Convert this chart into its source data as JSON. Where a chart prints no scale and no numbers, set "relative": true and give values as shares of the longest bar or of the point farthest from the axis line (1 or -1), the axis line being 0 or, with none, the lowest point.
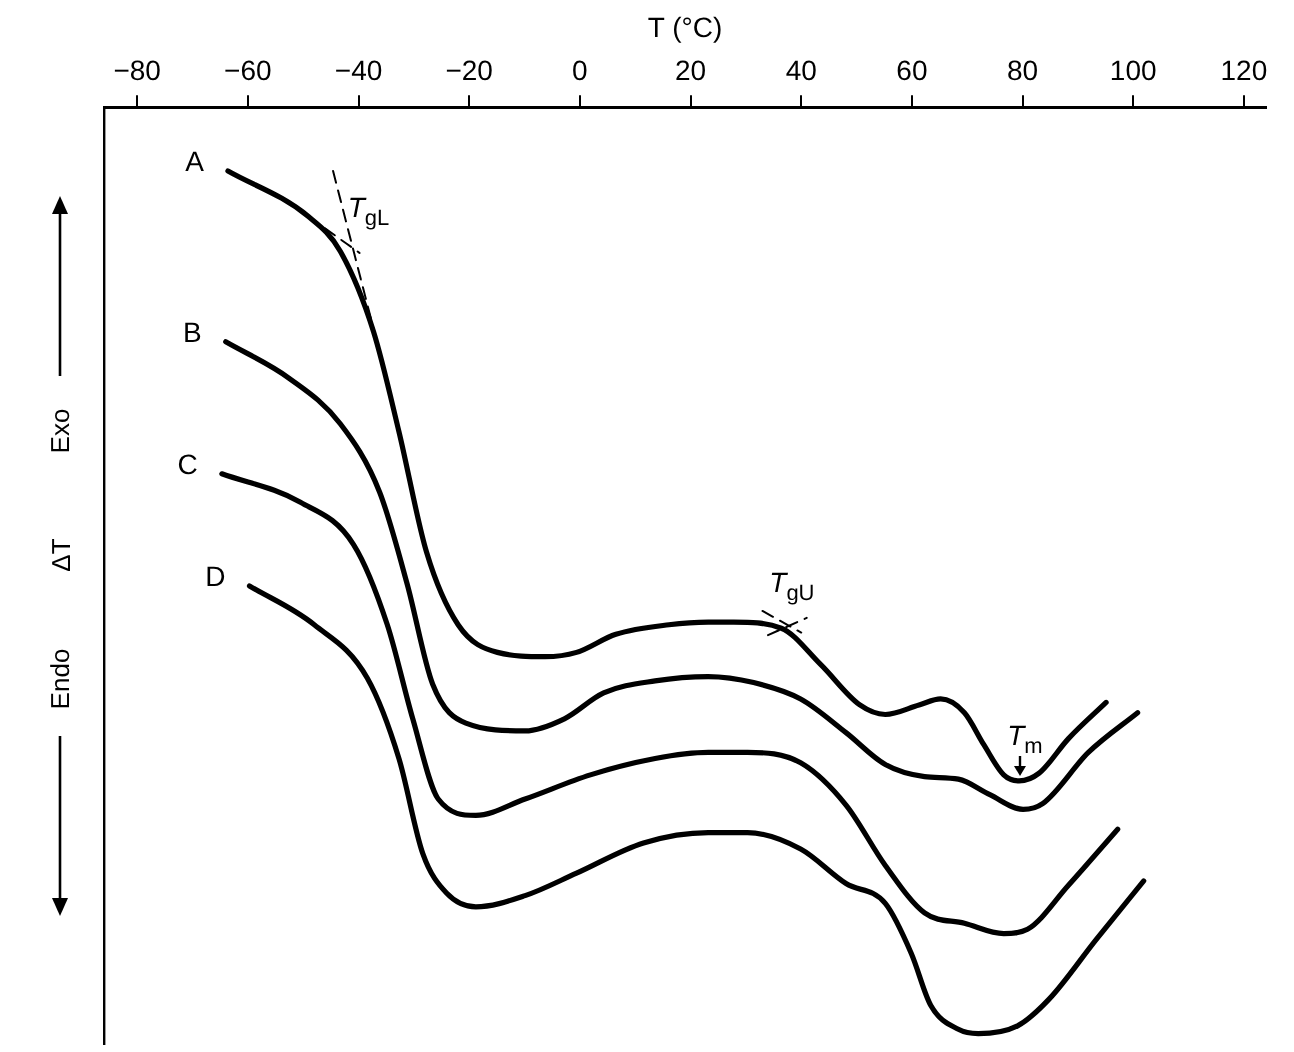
{
  "chart_data": {
    "type": "line",
    "relative": true,
    "xlabel": "T (°C)",
    "ylabel": "ΔT",
    "xlim": [
      -86,
      124
    ],
    "xticks": [
      -80,
      -60,
      -40,
      -20,
      0,
      20,
      40,
      60,
      80,
      100,
      120
    ],
    "grid": false,
    "legend": false,
    "marker": "none",
    "line_style": "solid",
    "series": [
      {
        "name": "A",
        "color": "#000000",
        "x": [
          -63.6,
          -49,
          -43.3,
          -37.3,
          -32.7,
          -27.7,
          -22,
          -14.9,
          -6.3,
          -0.6,
          6.5,
          16.1,
          23.2,
          27.8,
          36.4,
          43.5,
          50.6,
          55.2,
          61.3,
          65.2,
          69.5,
          73,
          76.6,
          79.4,
          83,
          88.3,
          95.1
        ],
        "values": [
          1.0,
          0.947,
          0.907,
          0.814,
          0.698,
          0.558,
          0.474,
          0.442,
          0.437,
          0.442,
          0.463,
          0.474,
          0.477,
          0.477,
          0.47,
          0.428,
          0.381,
          0.37,
          0.381,
          0.388,
          0.372,
          0.335,
          0.3,
          0.293,
          0.302,
          0.342,
          0.384
        ]
      },
      {
        "name": "B",
        "color": "#000000",
        "x": [
          -64,
          -52.6,
          -43.3,
          -36.2,
          -31.2,
          -26.6,
          -20.6,
          -9.9,
          -2.8,
          4.3,
          13.6,
          23.2,
          31.4,
          39.9,
          48.1,
          55.2,
          62.3,
          68.4,
          74.1,
          80.1,
          83.7,
          91.9,
          100.8
        ],
        "values": [
          0.802,
          0.76,
          0.707,
          0.628,
          0.521,
          0.405,
          0.36,
          0.351,
          0.365,
          0.395,
          0.409,
          0.414,
          0.407,
          0.388,
          0.349,
          0.312,
          0.298,
          0.295,
          0.277,
          0.26,
          0.267,
          0.326,
          0.372
        ]
      },
      {
        "name": "C",
        "color": "#000000",
        "x": [
          -64.7,
          -50.5,
          -40.9,
          -34.8,
          -30.2,
          -25.6,
          -18.8,
          -9.9,
          1.9,
          13.6,
          23.2,
          30.3,
          39.9,
          48.1,
          55.2,
          62.3,
          69.5,
          76.6,
          80.9,
          88.3,
          97.2
        ],
        "values": [
          0.649,
          0.616,
          0.567,
          0.474,
          0.365,
          0.272,
          0.253,
          0.272,
          0.3,
          0.319,
          0.326,
          0.326,
          0.314,
          0.265,
          0.195,
          0.14,
          0.128,
          0.116,
          0.121,
          0.172,
          0.237
        ]
      },
      {
        "name": "D",
        "color": "#000000",
        "x": [
          -59.7,
          -48,
          -38.4,
          -32.7,
          -28.4,
          -24.1,
          -18.8,
          -9.9,
          -0.6,
          11.5,
          23.2,
          30.3,
          39.9,
          48.1,
          55.2,
          59.9,
          63.4,
          68.4,
          72,
          79.1,
          84.8,
          93.3,
          101.9
        ],
        "values": [
          0.519,
          0.474,
          0.412,
          0.319,
          0.209,
          0.163,
          0.147,
          0.16,
          0.186,
          0.221,
          0.233,
          0.233,
          0.214,
          0.174,
          0.151,
          0.093,
          0.033,
          0.005,
          0,
          0.009,
          0.04,
          0.109,
          0.177
        ]
      },
      {
        "color": "#000000",
        "line_style": "dashed",
        "x": [
          -44.6,
          -36.6
        ],
        "values": [
          1.0,
          0.8
        ]
      },
      {
        "color": "#000000",
        "line_style": "dashed",
        "x": [
          -49,
          -39.8
        ],
        "values": [
          0.947,
          0.905
        ]
      },
      {
        "color": "#000000",
        "line_style": "dashed",
        "x": [
          33,
          40
        ],
        "values": [
          0.49,
          0.465
        ]
      },
      {
        "color": "#000000",
        "line_style": "dashed",
        "x": [
          34,
          41
        ],
        "values": [
          0.462,
          0.482
        ]
      }
    ],
    "annotations": [
      {
        "text": "T$_{gL}$",
        "x": -39.8,
        "y": 0.905
      },
      {
        "text": "T$_{gU}$",
        "x": 36.4,
        "y": 0.47
      },
      {
        "text": "T$_{m}$",
        "x": 79.4,
        "y": 0.293
      },
      "Exo",
      "Endo"
    ]
  }
}
